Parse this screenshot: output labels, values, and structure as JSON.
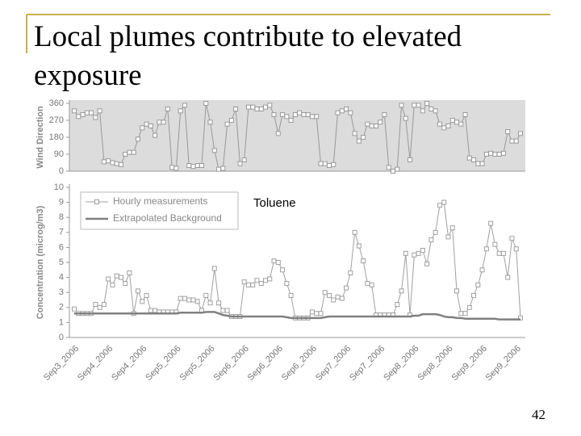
{
  "title": "Local plumes contribute to elevated exposure",
  "page_number": "42",
  "chart_data": [
    {
      "type": "line",
      "ylabel": "Wind Direction",
      "ylim": [
        0,
        360
      ],
      "yticks": [
        0,
        90,
        180,
        270,
        360
      ],
      "background": "#dcdcdc",
      "series": [
        {
          "name": "Wind Direction",
          "color": "#999999",
          "marker": "square",
          "values": [
            320,
            290,
            300,
            310,
            310,
            285,
            320,
            50,
            55,
            45,
            40,
            35,
            90,
            100,
            100,
            170,
            230,
            250,
            240,
            190,
            260,
            260,
            330,
            20,
            15,
            320,
            350,
            30,
            25,
            30,
            30,
            360,
            260,
            110,
            10,
            15,
            250,
            270,
            330,
            40,
            60,
            340,
            340,
            330,
            330,
            340,
            350,
            300,
            200,
            300,
            290,
            270,
            300,
            310,
            300,
            300,
            290,
            290,
            40,
            40,
            30,
            35,
            310,
            320,
            330,
            310,
            200,
            160,
            180,
            250,
            240,
            240,
            260,
            300,
            20,
            0,
            10,
            350,
            280,
            60,
            350,
            350,
            320,
            360,
            330,
            320,
            250,
            230,
            240,
            270,
            260,
            250,
            300,
            70,
            60,
            40,
            40,
            90,
            95,
            90,
            90,
            95,
            210,
            160,
            160,
            200
          ]
        }
      ]
    },
    {
      "type": "line",
      "ylabel": "Concentration (microg/m3)",
      "annotation": "Toluene",
      "ylim": [
        0,
        10
      ],
      "yticks": [
        0,
        1,
        2,
        3,
        4,
        5,
        6,
        7,
        8,
        9,
        10
      ],
      "legend": "upper left",
      "categories": [
        "Sep3_2006",
        null,
        null,
        null,
        null,
        null,
        null,
        null,
        "Sep4_2006",
        null,
        null,
        null,
        null,
        null,
        null,
        null,
        "Sep4_2006",
        null,
        null,
        null,
        null,
        null,
        null,
        null,
        "Sep5_2006",
        null,
        null,
        null,
        null,
        null,
        null,
        null,
        "Sep5_2006",
        null,
        null,
        null,
        null,
        null,
        null,
        null,
        "Sep6_2006",
        null,
        null,
        null,
        null,
        null,
        null,
        null,
        "Sep6_2006",
        null,
        null,
        null,
        null,
        null,
        null,
        null,
        "Sep6_2006",
        null,
        null,
        null,
        null,
        null,
        null,
        null,
        "Sep7_2006",
        null,
        null,
        null,
        null,
        null,
        null,
        null,
        "Sep7_2006",
        null,
        null,
        null,
        null,
        null,
        null,
        null,
        "Sep8_2006",
        null,
        null,
        null,
        null,
        null,
        null,
        null,
        "Sep8_2006",
        null,
        null,
        null,
        null,
        null,
        null,
        null,
        "Sep9_2006",
        null,
        null,
        null,
        null,
        null,
        null,
        null,
        "Sep9_2006",
        null
      ],
      "series": [
        {
          "name": "Hourly measurements",
          "color": "#a0a0a0",
          "marker": "square",
          "values": [
            1.9,
            1.6,
            1.6,
            1.6,
            1.6,
            2.2,
            2.0,
            2.2,
            3.9,
            3.5,
            4.1,
            4.0,
            3.6,
            4.3,
            1.6,
            3.1,
            2.4,
            2.8,
            1.8,
            1.8,
            1.7,
            1.7,
            1.7,
            1.7,
            1.7,
            2.6,
            2.6,
            2.5,
            2.5,
            2.4,
            1.8,
            2.8,
            2.3,
            4.6,
            2.3,
            1.8,
            1.8,
            1.4,
            1.4,
            1.4,
            3.7,
            3.5,
            3.5,
            3.8,
            3.6,
            3.8,
            3.9,
            5.1,
            5.0,
            4.5,
            3.6,
            2.8,
            1.3,
            1.3,
            1.3,
            1.3,
            1.7,
            1.6,
            1.6,
            3.0,
            2.8,
            2.5,
            2.7,
            2.6,
            3.3,
            4.3,
            7.0,
            6.1,
            5.1,
            3.6,
            3.5,
            1.5,
            1.5,
            1.5,
            1.5,
            1.5,
            2.2,
            3.1,
            5.6,
            1.5,
            5.5,
            5.6,
            5.8,
            4.9,
            6.5,
            7.0,
            8.8,
            9.0,
            6.7,
            7.3,
            3.1,
            1.6,
            1.6,
            2.0,
            2.8,
            3.5,
            4.5,
            5.9,
            7.6,
            6.2,
            5.6,
            5.6,
            4.0,
            6.6,
            5.9,
            1.3
          ]
        },
        {
          "name": "Extrapolated Background",
          "color": "#808080",
          "marker": "none",
          "values": [
            1.6,
            1.6,
            1.6,
            1.6,
            1.6,
            1.6,
            1.6,
            1.6,
            1.6,
            1.6,
            1.6,
            1.6,
            1.6,
            1.6,
            1.6,
            1.6,
            1.6,
            1.6,
            1.6,
            1.6,
            1.6,
            1.6,
            1.6,
            1.6,
            1.6,
            1.65,
            1.65,
            1.65,
            1.65,
            1.65,
            1.65,
            1.7,
            1.7,
            1.7,
            1.6,
            1.5,
            1.45,
            1.4,
            1.4,
            1.4,
            1.4,
            1.4,
            1.4,
            1.4,
            1.4,
            1.4,
            1.4,
            1.4,
            1.4,
            1.4,
            1.35,
            1.3,
            1.3,
            1.3,
            1.3,
            1.3,
            1.3,
            1.3,
            1.3,
            1.35,
            1.4,
            1.4,
            1.4,
            1.4,
            1.4,
            1.4,
            1.4,
            1.4,
            1.4,
            1.4,
            1.4,
            1.4,
            1.4,
            1.4,
            1.4,
            1.4,
            1.4,
            1.4,
            1.4,
            1.4,
            1.45,
            1.45,
            1.55,
            1.55,
            1.55,
            1.55,
            1.5,
            1.4,
            1.35,
            1.35,
            1.3,
            1.3,
            1.25,
            1.25,
            1.25,
            1.25,
            1.25,
            1.25,
            1.25,
            1.25,
            1.2,
            1.2,
            1.2,
            1.2,
            1.2,
            1.2
          ]
        }
      ]
    }
  ]
}
